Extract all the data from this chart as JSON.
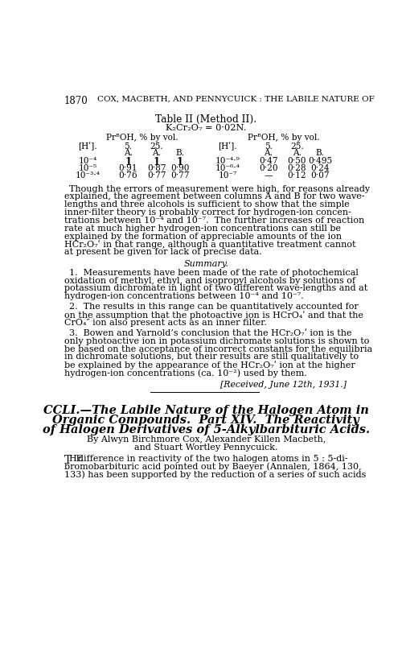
{
  "bg_color": "#ffffff",
  "header_line1": "1870",
  "header_line2": "COX, MACBETH, AND PENNYCUICK : THE LABILE NATURE OF",
  "table_title": "Table II (Method II).",
  "table_subtitle": "K₂Cr₂O₇ = 0·02N.",
  "table_header_left": "PrᴮOH, % by vol.",
  "table_header_right": "PrᴮOH, % by vol.",
  "left_rows": [
    [
      "10⁻⁴",
      "1",
      "1",
      "1"
    ],
    [
      "10⁻⁵",
      "0·91",
      "0·87",
      "0·90"
    ],
    [
      "10⁻³·⁴",
      "0·76",
      "0·77",
      "0·77"
    ]
  ],
  "right_rows": [
    [
      "10⁻⁴·⁹",
      "0·47",
      "0·50",
      "0·495"
    ],
    [
      "10⁻⁶·⁴",
      "0·20",
      "0·28",
      "0·24"
    ],
    [
      "10⁻⁷",
      "—",
      "0·12",
      "0·07"
    ]
  ],
  "para1_lines": [
    "Though the errors of measurement were high, for reasons already",
    "explained, the agreement between columns A and B for two wave-",
    "lengths and three alcohols is sufficient to show that the simple",
    "inner-filter theory is probably correct for hydrogen-ion concen-",
    "trations between 10⁻⁴ and 10⁻⁷.  The further increases of reaction",
    "rate at much higher hydrogen-ion concentrations can still be",
    "explained by the formation of appreciable amounts of the ion",
    "HCr₂O₇ʹ in that range, although a quantitative treatment cannot",
    "at present be given for lack of precise data."
  ],
  "summary_title": "Summary.",
  "sum_p1_lines": [
    "1.  Measurements have been made of the rate of photochemical",
    "oxidation of methyl, ethyl, and isopropyl alcohols by solutions of",
    "potassium dichromate in light of two different wave-lengths and at",
    "hydrogen-ion concentrations between 10⁻⁴ and 10⁻⁷."
  ],
  "sum_p2_lines": [
    "2.  The results in this range can be quantitatively accounted for",
    "on the assumption that the photoactive ion is HCrO₄ʹ and that the",
    "CrO₄″ ion also present acts as an inner filter."
  ],
  "sum_p3_lines": [
    "3.  Bowen and Yarnold’s conclusion that the HCr₂O₇ʹ ion is the",
    "only photoactive ion in potassium dichromate solutions is shown to",
    "be based on the acceptance of incorrect constants for the equilibria",
    "in dichromate solutions, but their results are still qualitatively to",
    "be explained by the appearance of the HCr₂O₇ʹ ion at the higher",
    "hydrogen-ion concentrations (ca. 10⁻²) used by them."
  ],
  "received": "[Received, June 12th, 1931.]",
  "new_title1": "CCLI.—The Labile Nature of the Halogen Atom in",
  "new_title2": "Organic Compounds.  Part XIV.  The Reactivity",
  "new_title3": "of Halogen Derivatives of 5-Alkylbarbituric Acids.",
  "authors1": "By Alwyn Birchmore Cox, Alexander Killen Macbeth,",
  "authors2": "and Stuart Wortley Pennycuick.",
  "new_para_rest": [
    "difference in reactivity of the two halogen atoms in 5 : 5-di-",
    "bromobarbituric acid pointed out by Baeyer (Annalen, 1864, 130,",
    "133) has been supported by the reduction of a series of such acids"
  ],
  "iso_word": "iso"
}
